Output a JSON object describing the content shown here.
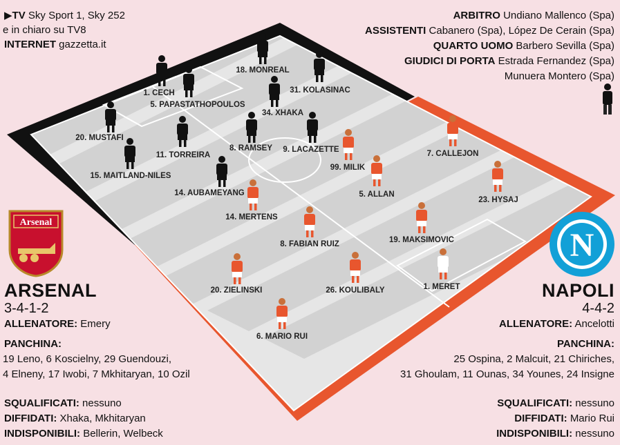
{
  "broadcast": {
    "tv_label": "TV",
    "tv_value": "Sky Sport 1, Sky 252",
    "tv_line2": "e in chiaro su TV8",
    "internet_label": "INTERNET",
    "internet_value": "gazzetta.it"
  },
  "officials": [
    {
      "label": "ARBITRO",
      "value": "Undiano Mallenco (Spa)"
    },
    {
      "label": "ASSISTENTI",
      "value": "Cabanero (Spa), López De Cerain (Spa)"
    },
    {
      "label": "QUARTO UOMO",
      "value": "Barbero Sevilla (Spa)"
    },
    {
      "label": "GIUDICI DI PORTA",
      "value": "Estrada Fernandez (Spa)"
    },
    {
      "label": "",
      "value": "Munuera Montero (Spa)"
    }
  ],
  "home": {
    "crest_text": "Arsenal",
    "name": "ARSENAL",
    "formation": "3-4-1-2",
    "coach_label": "ALLENATORE:",
    "coach": "Emery",
    "bench_label": "PANCHINA:",
    "bench_line1": "19 Leno, 6 Koscielny, 29 Guendouzi,",
    "bench_line2": "4 Elneny, 17 Iwobi, 7 Mkhitaryan, 10 Ozil",
    "suspended_label": "SQUALIFICATI:",
    "suspended": "nessuno",
    "warned_label": "DIFFIDATI:",
    "warned": "Xhaka, Mkhitaryan",
    "unavailable_label": "INDISPONIBILI:",
    "unavailable": "Bellerin, Welbeck",
    "color": "#1a1a1a"
  },
  "away": {
    "crest_text": "N",
    "name": "NAPOLI",
    "formation": "4-4-2",
    "coach_label": "ALLENATORE:",
    "coach": "Ancelotti",
    "bench_label": "PANCHINA:",
    "bench_line1": "25 Ospina, 2 Malcuit, 21 Chiriches,",
    "bench_line2": "31 Ghoulam, 11 Ounas, 34 Younes, 24 Insigne",
    "suspended_label": "SQUALIFICATI:",
    "suspended": "nessuno",
    "warned_label": "DIFFIDATI:",
    "warned": "Mario Rui",
    "unavailable_label": "INDISPONIBILI:",
    "unavailable": "nessuno",
    "color": "#e8562e"
  },
  "home_players": [
    {
      "label": "1. CECH"
    },
    {
      "label": "5. PAPASTATHOPOULOS"
    },
    {
      "label": "18. MONREAL"
    },
    {
      "label": "31. KOLASINAC"
    },
    {
      "label": "34. XHAKA"
    },
    {
      "label": "20. MUSTAFI"
    },
    {
      "label": "11. TORREIRA"
    },
    {
      "label": "8. RAMSEY"
    },
    {
      "label": "9. LACAZETTE"
    },
    {
      "label": "15. MAITLAND-NILES"
    },
    {
      "label": "14. AUBAMEYANG"
    }
  ],
  "away_players": [
    {
      "label": "7. CALLEJON"
    },
    {
      "label": "99. MILIK"
    },
    {
      "label": "5. ALLAN"
    },
    {
      "label": "23. HYSAJ"
    },
    {
      "label": "14. MERTENS"
    },
    {
      "label": "8. FABIAN RUIZ"
    },
    {
      "label": "19. MAKSIMOVIC"
    },
    {
      "label": "20. ZIELINSKI"
    },
    {
      "label": "26. KOULIBALY"
    },
    {
      "label": "1. MERET"
    },
    {
      "label": "6. MARIO RUI"
    }
  ]
}
